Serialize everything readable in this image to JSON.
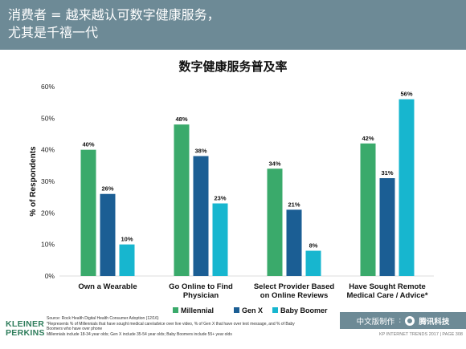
{
  "header": {
    "title_line1": "消费者 = 越来越认可数字健康服务，",
    "title_line2": "尤其是千禧一代"
  },
  "chart_data": {
    "type": "bar",
    "title": "数字健康服务普及率",
    "ylabel": "% of Respondents",
    "ylim": [
      0,
      60
    ],
    "yticks": [
      "0%",
      "10%",
      "20%",
      "30%",
      "40%",
      "50%",
      "60%"
    ],
    "categories": [
      [
        "Own a Wearable"
      ],
      [
        "Go Online to Find",
        "Physician"
      ],
      [
        "Select Provider Based",
        "on Online Reviews"
      ],
      [
        "Have Sought Remote",
        "Medical Care / Advice*"
      ]
    ],
    "series": [
      {
        "name": "Millennial",
        "color": "#3aaa6b",
        "values": [
          40,
          48,
          34,
          42
        ],
        "labels": [
          "40%",
          "48%",
          "34%",
          "42%"
        ]
      },
      {
        "name": "Gen X",
        "color": "#1b5e94",
        "values": [
          26,
          38,
          21,
          31
        ],
        "labels": [
          "26%",
          "38%",
          "21%",
          "31%"
        ]
      },
      {
        "name": "Baby Boomer",
        "color": "#17b6cf",
        "values": [
          10,
          23,
          8,
          56
        ],
        "labels": [
          "10%",
          "23%",
          "8%",
          "56%"
        ]
      }
    ],
    "legend_position": "bottom",
    "grid": false
  },
  "source": {
    "line1": "Source: Rock Health Digital Health Consumer Adoption (12/16)",
    "line2": "*Represents % of Millennials that have sought medical care/advice over live video, % of Gen X that have over text message, and % of Baby",
    "line3": "Boomers who have over phone",
    "line4": "Millennials include 18-34 year olds; Gen X include 35-54 year olds; Baby Boomers include 55+ year olds"
  },
  "logo": {
    "line1": "KLEINER",
    "line2": "PERKINS"
  },
  "badge": {
    "text": "中文版制作",
    "brand": "腾讯科技"
  },
  "footer": {
    "text": "KP INTERNET TRENDS 2017  |  PAGE 308"
  }
}
